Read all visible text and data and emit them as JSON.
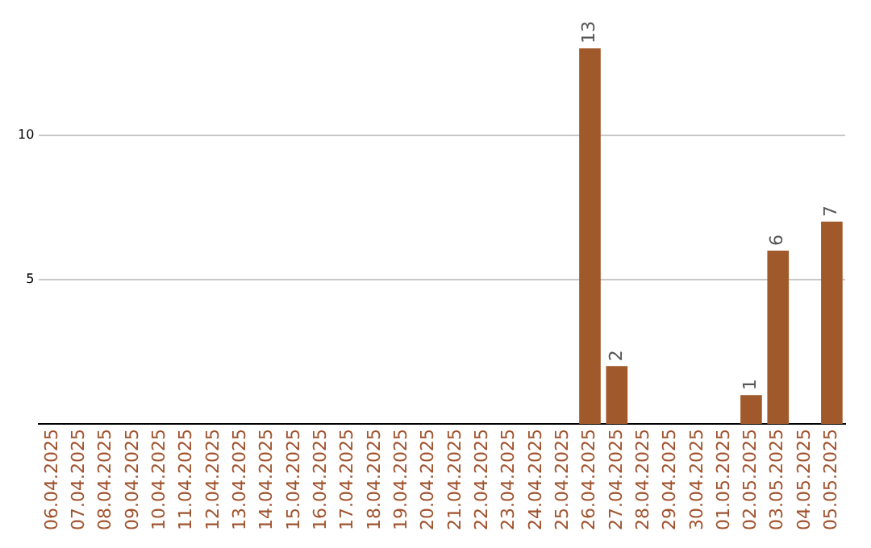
{
  "chart_data": {
    "type": "bar",
    "categories": [
      "06.04.2025",
      "07.04.2025",
      "08.04.2025",
      "09.04.2025",
      "10.04.2025",
      "11.04.2025",
      "12.04.2025",
      "13.04.2025",
      "14.04.2025",
      "15.04.2025",
      "16.04.2025",
      "17.04.2025",
      "18.04.2025",
      "19.04.2025",
      "20.04.2025",
      "21.04.2025",
      "22.04.2025",
      "23.04.2025",
      "24.04.2025",
      "25.04.2025",
      "26.04.2025",
      "27.04.2025",
      "28.04.2025",
      "29.04.2025",
      "30.04.2025",
      "01.05.2025",
      "02.05.2025",
      "03.05.2025",
      "04.05.2025",
      "05.05.2025"
    ],
    "values": [
      0,
      0,
      0,
      0,
      0,
      0,
      0,
      0,
      0,
      0,
      0,
      0,
      0,
      0,
      0,
      0,
      0,
      0,
      0,
      0,
      13,
      2,
      0,
      0,
      0,
      0,
      1,
      6,
      0,
      7
    ],
    "value_labels": [
      null,
      null,
      null,
      null,
      null,
      null,
      null,
      null,
      null,
      null,
      null,
      null,
      null,
      null,
      null,
      null,
      null,
      null,
      null,
      null,
      "13",
      "2",
      null,
      null,
      null,
      null,
      "1",
      "6",
      null,
      "7"
    ],
    "color": "#a0592a",
    "ylim": [
      0,
      13
    ],
    "yticks": [
      5,
      10
    ],
    "grid": "y",
    "legend": false
  }
}
